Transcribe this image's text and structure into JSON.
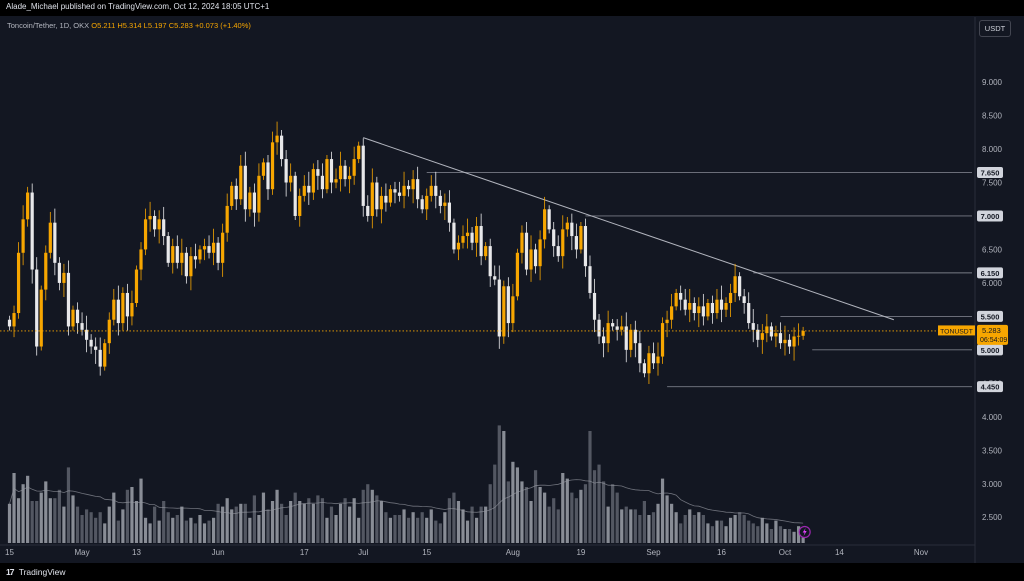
{
  "header": {
    "publisher": "Alade_Michael published on TradingView.com, Oct 12, 2024 18:05 UTC+1",
    "symbol_desc": "Toncoin/Tether, 1D, OKX",
    "ohlc": [
      "O5.211",
      "H5.314",
      "L5.197",
      "C5.283",
      "+0.073 (+1.40%)"
    ],
    "currency": "USDT"
  },
  "footer": {
    "brand_logo": "17",
    "brand": "TradingView"
  },
  "chart_data": {
    "type": "candlestick",
    "title": "",
    "ylim": [
      2.1,
      9.3
    ],
    "y_ticks": [
      2.5,
      3.0,
      3.5,
      4.0,
      4.5,
      5.0,
      5.5,
      6.0,
      6.5,
      7.0,
      7.5,
      8.0,
      8.5,
      9.0
    ],
    "y_tick_labels": [
      "2.500",
      "3.000",
      "3.500",
      "4.000",
      "4.500",
      "5.000",
      "5.500",
      "6.000",
      "6.500",
      "7.000",
      "7.500",
      "8.000",
      "8.500",
      "9.000"
    ],
    "x_tick_labels": [
      "15",
      "May",
      "13",
      "Jun",
      "17",
      "Jul",
      "15",
      "Aug",
      "19",
      "Sep",
      "16",
      "Oct",
      "14",
      "Nov"
    ],
    "x_tick_days": [
      0,
      16,
      28,
      46,
      65,
      78,
      92,
      111,
      126,
      142,
      157,
      171,
      183,
      201
    ],
    "last_price": {
      "symbol": "TONUSDT",
      "price": "5.283",
      "countdown": "06:54:09",
      "value": 5.283
    },
    "levels": [
      {
        "value": 7.65,
        "label": "7.650",
        "start_day": 92
      },
      {
        "value": 7.0,
        "label": "7.000",
        "start_day": 127
      },
      {
        "value": 6.15,
        "label": "6.150",
        "start_day": 164
      },
      {
        "value": 5.5,
        "label": "5.500",
        "start_day": 170
      },
      {
        "value": 5.0,
        "label": "5.000",
        "start_day": 177
      },
      {
        "value": 4.45,
        "label": "4.450",
        "start_day": 145
      }
    ],
    "trendline": {
      "from": [
        78,
        8.17
      ],
      "to": [
        195,
        5.45
      ]
    },
    "closes": [
      5.35,
      5.55,
      6.45,
      6.95,
      7.35,
      6.2,
      5.05,
      5.9,
      6.45,
      6.9,
      6.3,
      6.0,
      6.15,
      5.35,
      5.6,
      5.4,
      5.3,
      5.15,
      5.05,
      5.0,
      4.75,
      5.1,
      5.45,
      5.75,
      5.4,
      5.85,
      5.5,
      5.7,
      6.2,
      6.5,
      6.95,
      7.0,
      6.8,
      6.95,
      6.7,
      6.3,
      6.55,
      6.3,
      6.45,
      6.1,
      6.4,
      6.35,
      6.5,
      6.55,
      6.45,
      6.6,
      6.3,
      6.75,
      7.15,
      7.45,
      7.25,
      7.75,
      7.1,
      7.35,
      7.05,
      7.6,
      7.8,
      7.4,
      8.1,
      8.2,
      7.85,
      7.5,
      7.6,
      7.0,
      7.3,
      7.45,
      7.35,
      7.7,
      7.6,
      7.4,
      7.85,
      7.5,
      7.55,
      7.75,
      7.55,
      7.6,
      7.85,
      8.05,
      7.15,
      7.0,
      7.5,
      7.1,
      7.3,
      7.2,
      7.4,
      7.35,
      7.3,
      7.45,
      7.4,
      7.55,
      7.25,
      7.1,
      7.3,
      7.45,
      7.3,
      7.15,
      7.2,
      6.9,
      6.5,
      6.6,
      6.7,
      6.75,
      6.6,
      6.85,
      6.4,
      6.55,
      6.1,
      6.05,
      5.2,
      5.95,
      5.4,
      5.8,
      6.45,
      6.75,
      6.2,
      6.5,
      6.25,
      6.65,
      7.1,
      6.8,
      6.55,
      6.4,
      6.8,
      6.9,
      6.7,
      6.5,
      6.85,
      6.25,
      5.85,
      5.45,
      5.2,
      5.1,
      5.4,
      5.35,
      5.3,
      5.35,
      5.0,
      5.3,
      5.1,
      4.8,
      4.65,
      4.95,
      4.8,
      4.9,
      5.4,
      5.45,
      5.65,
      5.85,
      5.75,
      5.6,
      5.7,
      5.55,
      5.65,
      5.5,
      5.7,
      5.55,
      5.75,
      5.6,
      5.7,
      5.85,
      6.1,
      5.8,
      5.7,
      5.4,
      5.3,
      5.15,
      5.25,
      5.35,
      5.2,
      5.25,
      5.1,
      5.15,
      5.05,
      5.2,
      5.21,
      5.283
    ],
    "volumes": [
      1.4,
      2.5,
      1.6,
      2.1,
      2.4,
      1.5,
      1.5,
      1.8,
      2.2,
      1.6,
      1.6,
      1.9,
      1.3,
      2.7,
      1.7,
      1.3,
      1.0,
      1.2,
      1.1,
      0.9,
      1.1,
      0.7,
      1.3,
      1.8,
      0.8,
      1.2,
      1.9,
      2.0,
      1.5,
      2.3,
      0.9,
      0.7,
      1.3,
      0.8,
      1.5,
      1.1,
      0.9,
      1.0,
      1.3,
      0.8,
      0.9,
      0.7,
      1.0,
      0.7,
      0.8,
      0.9,
      1.4,
      1.3,
      1.6,
      1.2,
      1.3,
      1.4,
      1.4,
      0.9,
      1.7,
      1.0,
      1.8,
      1.2,
      1.5,
      1.9,
      1.4,
      1.0,
      1.5,
      1.8,
      1.5,
      1.4,
      1.6,
      1.4,
      1.7,
      1.6,
      0.9,
      1.3,
      1.0,
      1.4,
      1.6,
      1.3,
      1.6,
      0.9,
      1.9,
      2.1,
      1.9,
      1.7,
      1.5,
      1.1,
      0.9,
      1.0,
      1.0,
      1.2,
      0.9,
      1.1,
      0.9,
      1.1,
      0.9,
      1.2,
      0.8,
      0.7,
      1.1,
      1.6,
      1.8,
      1.5,
      1.2,
      0.8,
      1.3,
      0.9,
      1.3,
      1.3,
      2.1,
      2.8,
      4.2,
      4.0,
      2.2,
      2.9,
      2.7,
      2.2,
      2.0,
      1.5,
      2.6,
      2.0,
      1.8,
      1.3,
      1.6,
      1.2,
      2.5,
      2.3,
      1.8,
      1.6,
      1.9,
      2.1,
      4.0,
      2.6,
      2.8,
      2.2,
      1.3,
      2.1,
      1.8,
      1.2,
      1.3,
      1.2,
      1.2,
      1.0,
      1.5,
      1.0,
      1.1,
      1.4,
      2.3,
      1.7,
      1.4,
      1.1,
      0.7,
      1.0,
      1.2,
      1.0,
      1.1,
      1.0,
      0.7,
      0.6,
      0.8,
      0.8,
      0.6,
      0.9,
      1.0,
      1.1,
      1.0,
      0.8,
      0.7,
      0.6,
      0.9,
      0.7,
      0.5,
      0.8,
      0.6,
      0.5,
      0.5,
      0.4,
      0.6,
      0.4
    ],
    "volume_ma": true,
    "grid": false
  }
}
